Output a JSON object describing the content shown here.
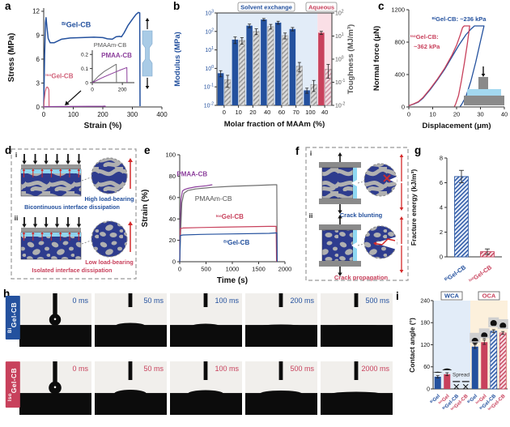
{
  "colors": {
    "blue": "#24519e",
    "red": "#c8415c",
    "pink_red": "#d06078",
    "purple": "#8c3f9c",
    "gray": "#6f6f6f",
    "navy": "#2e3c8e",
    "cyan": "#8fd8f2",
    "bg_blue": "#e2ecf8",
    "bg_pink": "#fadfe6",
    "bg_orange": "#fcf0dc"
  },
  "panel_labels": {
    "a": "a",
    "b": "b",
    "c": "c",
    "d": "d",
    "e": "e",
    "f": "f",
    "g": "g",
    "h": "h",
    "i": "i"
  },
  "chart_data": [
    {
      "panel": "a",
      "type": "line",
      "xlabel": "Strain (%)",
      "ylabel": "Stress (MPa)",
      "xlim": [
        0,
        400
      ],
      "ylim": [
        0,
        12.4
      ],
      "xticks": [
        0,
        100,
        200,
        300,
        400
      ],
      "yticks": [
        0,
        3,
        6,
        9,
        12
      ],
      "series": [
        {
          "name": "BiGel-CB",
          "sup": "Bi",
          "main": "Gel-CB",
          "color": "blue",
          "points": [
            [
              0,
              0
            ],
            [
              3,
              6.5
            ],
            [
              6,
              10.6
            ],
            [
              8,
              11.2
            ],
            [
              11,
              10
            ],
            [
              15,
              8.6
            ],
            [
              22,
              8.05
            ],
            [
              35,
              8.05
            ],
            [
              60,
              8.5
            ],
            [
              90,
              8.65
            ],
            [
              130,
              8.7
            ],
            [
              170,
              8.75
            ],
            [
              200,
              8.7
            ],
            [
              215,
              8.55
            ],
            [
              232,
              8.5
            ],
            [
              245,
              8.8
            ],
            [
              256,
              8.85
            ],
            [
              263,
              8.8
            ],
            [
              272,
              9.3
            ],
            [
              285,
              10.2
            ],
            [
              300,
              11.0
            ],
            [
              312,
              11.6
            ],
            [
              320,
              11.85
            ],
            [
              325,
              11.8
            ],
            [
              326,
              0.1
            ]
          ]
        },
        {
          "name": "IsoGel-CB",
          "sup": "Iso",
          "main": "Gel-CB",
          "color": "pink_red",
          "points": [
            [
              0,
              0
            ],
            [
              2,
              0.9
            ],
            [
              5,
              1.9
            ],
            [
              9,
              2.45
            ],
            [
              13,
              2.5
            ],
            [
              16,
              2.3
            ],
            [
              17.5,
              2.15
            ],
            [
              18,
              0.05
            ]
          ]
        },
        {
          "name": "PMAA-CB",
          "sup": "",
          "main": "PMAA-CB",
          "color": "purple",
          "points": [
            [
              0,
              0
            ],
            [
              5,
              0.04
            ],
            [
              100,
              0.06
            ],
            [
              200,
              0.09
            ],
            [
              208,
              0.1
            ],
            [
              210,
              0
            ]
          ]
        }
      ],
      "series_labels": [
        {
          "text_sup": "Bi",
          "text_main": "Gel-CB",
          "x": 110,
          "y": 10.0,
          "color": "blue",
          "anchor": "middle"
        },
        {
          "text_sup": "Iso",
          "text_main": "Gel-CB",
          "x": 6,
          "y": 3.6,
          "color": "pink_red",
          "anchor": "start"
        }
      ],
      "inset": {
        "xlim": [
          0,
          280
        ],
        "ylim": [
          0,
          0.23
        ],
        "xticks": [
          0,
          200
        ],
        "yticks": [
          0,
          0.1,
          0.2
        ],
        "series": [
          {
            "name": "PMAAm-CB",
            "color": "gray",
            "points": [
              [
                0,
                0
              ],
              [
                40,
                0.045
              ],
              [
                80,
                0.08
              ],
              [
                120,
                0.105
              ],
              [
                155,
                0.128
              ],
              [
                160,
                0.13
              ],
              [
                161,
                0
              ]
            ]
          },
          {
            "name": "PMAA-CB",
            "color": "purple",
            "points": [
              [
                0,
                0
              ],
              [
                60,
                0.032
              ],
              [
                120,
                0.06
              ],
              [
                180,
                0.087
              ],
              [
                225,
                0.105
              ],
              [
                230,
                0.107
              ],
              [
                231,
                0
              ]
            ]
          }
        ],
        "labels": [
          {
            "text": "PMAAm-CB",
            "color": "gray"
          },
          {
            "text": "PMAA-CB",
            "color": "purple"
          }
        ]
      }
    },
    {
      "panel": "b",
      "type": "bar",
      "xlabel": "Molar fraction of MAAm (%)",
      "ylabel_left": "Modulus (MPa)",
      "ylabel_right": "Toughness (MJ/m³)",
      "categories": [
        "0",
        "10",
        "20",
        "40",
        "60",
        "70",
        "100",
        "40"
      ],
      "regions": [
        {
          "label": "Solvent exchange",
          "color": "blue"
        },
        {
          "label": "Aqueous",
          "color": "red"
        }
      ],
      "left_axis": {
        "scale": "log",
        "min_exp": -2,
        "max_exp": 3
      },
      "right_axis": {
        "scale": "log",
        "min_exp": -2,
        "max_exp": 2
      },
      "series": [
        {
          "name": "Modulus (MPa)",
          "axis": "left",
          "values": [
            0.55,
            36,
            205,
            440,
            300,
            135,
            0.065,
            85
          ],
          "errors": [
            0.2,
            14,
            45,
            60,
            55,
            28,
            0.02,
            16
          ]
        },
        {
          "name": "Toughness (MJ/m³)",
          "axis": "right",
          "values": [
            0.13,
            6.5,
            16,
            26,
            10.5,
            0.5,
            0.08,
            0.37
          ],
          "errors": [
            0.07,
            2,
            4.5,
            6,
            3,
            0.22,
            0.04,
            0.22
          ]
        }
      ]
    },
    {
      "panel": "c",
      "type": "line",
      "xlabel": "Displacement (μm)",
      "ylabel": "Normal force (μN)",
      "xlim": [
        0,
        40
      ],
      "ylim": [
        0,
        1200
      ],
      "xticks": [
        0,
        10,
        20,
        30,
        40
      ],
      "yticks": [
        0,
        400,
        800,
        1200
      ],
      "series": [
        {
          "name": "BiGel-CB",
          "color": "blue",
          "points": [
            [
              0,
              15
            ],
            [
              2,
              35
            ],
            [
              4,
              60
            ],
            [
              6,
              110
            ],
            [
              9,
              215
            ],
            [
              12,
              335
            ],
            [
              15,
              465
            ],
            [
              18,
              615
            ],
            [
              21,
              765
            ],
            [
              24,
              895
            ],
            [
              26,
              960
            ],
            [
              27.5,
              1000
            ],
            [
              31.5,
              1000
            ],
            [
              30,
              810
            ],
            [
              28,
              550
            ],
            [
              26,
              320
            ],
            [
              24,
              135
            ],
            [
              22.2,
              35
            ],
            [
              21.5,
              5
            ]
          ]
        },
        {
          "name": "IsoGel-CB",
          "color": "red",
          "points": [
            [
              0,
              15
            ],
            [
              2,
              38
            ],
            [
              4,
              65
            ],
            [
              6,
              118
            ],
            [
              9,
              225
            ],
            [
              12,
              345
            ],
            [
              15,
              478
            ],
            [
              18,
              635
            ],
            [
              20,
              762
            ],
            [
              21.5,
              885
            ],
            [
              22.5,
              980
            ],
            [
              23.2,
              1000
            ],
            [
              25.5,
              1000
            ],
            [
              24.5,
              780
            ],
            [
              23.3,
              545
            ],
            [
              22,
              320
            ],
            [
              20.8,
              140
            ],
            [
              19.6,
              35
            ],
            [
              19.1,
              5
            ]
          ]
        }
      ],
      "annotations": [
        {
          "sup": "Bi",
          "main": "Gel-CB: ~236 kPa",
          "color": "blue"
        },
        {
          "sup": "Iso",
          "main": "Gel-CB:",
          "color": "red"
        },
        {
          "text": "~362 kPa",
          "color": "red"
        }
      ]
    },
    {
      "panel": "e",
      "type": "line",
      "xlabel": "Time (s)",
      "ylabel": "Strain (%)",
      "xlim": [
        0,
        2000
      ],
      "ylim": [
        0,
        100
      ],
      "xticks": [
        0,
        500,
        1000,
        1500,
        2000
      ],
      "yticks": [
        0,
        20,
        40,
        60,
        80,
        100
      ],
      "series": [
        {
          "name": "PMAA-CB",
          "color": "purple",
          "points": [
            [
              0,
              0
            ],
            [
              10,
              30
            ],
            [
              25,
              58
            ],
            [
              50,
              66
            ],
            [
              90,
              67.5
            ],
            [
              150,
              68.5
            ],
            [
              300,
              70
            ],
            [
              500,
              71
            ],
            [
              620,
              72
            ]
          ]
        },
        {
          "name": "PMAAm-CB",
          "color": "gray",
          "points": [
            [
              0,
              0
            ],
            [
              15,
              25
            ],
            [
              40,
              55
            ],
            [
              80,
              64
            ],
            [
              150,
              66.5
            ],
            [
              300,
              68
            ],
            [
              600,
              69.5
            ],
            [
              1000,
              70.5
            ],
            [
              1400,
              71.2
            ],
            [
              1800,
              72
            ],
            [
              1845,
              72
            ],
            [
              1852,
              0
            ]
          ]
        },
        {
          "name": "IsoGel-CB",
          "color": "red",
          "points": [
            [
              0,
              0
            ],
            [
              12,
              31
            ],
            [
              60,
              31.5
            ],
            [
              400,
              32
            ],
            [
              1000,
              32.5
            ],
            [
              1700,
              33
            ],
            [
              1832,
              33
            ],
            [
              1840,
              0
            ]
          ]
        },
        {
          "name": "BiGel-CB",
          "color": "blue",
          "points": [
            [
              0,
              0
            ],
            [
              12,
              24.5
            ],
            [
              60,
              25
            ],
            [
              400,
              25.5
            ],
            [
              1000,
              26
            ],
            [
              1700,
              26.5
            ],
            [
              1846,
              27
            ],
            [
              1853,
              0
            ]
          ]
        }
      ],
      "series_labels": [
        {
          "text_sup": "",
          "text_main": "PMAA-CB",
          "x": 235,
          "y": 80,
          "color": "purple",
          "bold": true
        },
        {
          "text_sup": "",
          "text_main": "PMAAm-CB",
          "x": 640,
          "y": 57,
          "color": "gray",
          "bold": false
        },
        {
          "text_sup": "Iso",
          "text_main": "Gel-CB",
          "x": 950,
          "y": 40,
          "color": "red",
          "bold": true
        },
        {
          "text_sup": "Bi",
          "text_main": "Gel-CB",
          "x": 1080,
          "y": 16,
          "color": "blue",
          "bold": true
        }
      ]
    },
    {
      "panel": "g",
      "type": "bar",
      "ylabel": "Fracture energy (kJ/m³)",
      "ylim": [
        0,
        8
      ],
      "yticks": [
        0,
        2,
        4,
        6,
        8
      ],
      "bars": [
        {
          "sup": "Bi",
          "main": "Gel-CB",
          "value": 6.5,
          "error": 0.5,
          "style": "hatch_blue",
          "color": "blue"
        },
        {
          "sup": "Iso",
          "main": "Gel-CB",
          "value": 0.42,
          "error": 0.22,
          "style": "hatch_red",
          "color": "red"
        }
      ]
    },
    {
      "panel": "i",
      "type": "bar",
      "ylabel": "Contact angle (°)",
      "ylim": [
        0,
        240
      ],
      "yticks": [
        0,
        60,
        120,
        180,
        240
      ],
      "spread_label": "Spread",
      "groups": [
        {
          "label": "WCA",
          "color": "blue"
        },
        {
          "label": "OCA",
          "color": "red"
        }
      ],
      "bars": [
        {
          "sup": "Bi",
          "main": "Gel",
          "value": 33,
          "error": 3,
          "style": "solid_blue",
          "group": 0,
          "icon": 0.22
        },
        {
          "sup": "Iso",
          "main": "Gel",
          "value": 40,
          "error": 4,
          "style": "solid_red",
          "group": 0,
          "icon": 0.35
        },
        {
          "sup": "Bi",
          "main": "Gel-CB",
          "value": null,
          "group": 0
        },
        {
          "sup": "Iso",
          "main": "Gel-CB",
          "value": null,
          "group": 0
        },
        {
          "sup": "Bi",
          "main": "Gel",
          "value": 115,
          "error": 5,
          "style": "solid_blue",
          "group": 1,
          "icon": 0.55
        },
        {
          "sup": "Iso",
          "main": "Gel",
          "value": 127,
          "error": 6,
          "style": "solid_red",
          "group": 1,
          "icon": 0.7
        },
        {
          "sup": "Bi",
          "main": "Gel-CB",
          "value": 157,
          "error": 4,
          "style": "hatch_blue",
          "group": 1,
          "icon": 0.9
        },
        {
          "sup": "Iso",
          "main": "Gel-CB",
          "value": 152,
          "error": 4,
          "style": "hatch_red",
          "group": 1,
          "icon": 0.8
        }
      ]
    }
  ],
  "schematic_d": {
    "items": [
      {
        "roman": "i",
        "morphology": "bicontinuous",
        "inset_label": "High load-bearing",
        "inset_color": "blue",
        "caption": "Bicontinuous interface dissipation",
        "caption_color": "blue"
      },
      {
        "roman": "ii",
        "morphology": "isolated",
        "inset_label": "Low load-bearing",
        "inset_color": "red",
        "caption": "Isolated interface dissipation",
        "caption_color": "red"
      }
    ]
  },
  "schematic_f": {
    "items": [
      {
        "roman": "i",
        "morphology": "bicontinuous",
        "crack": "blunt",
        "caption": "Crack blunting",
        "caption_color": "blue"
      },
      {
        "roman": "ii",
        "morphology": "isolated",
        "crack": "propagate",
        "caption": "Crack propagation",
        "caption_color": "red"
      }
    ]
  },
  "photos_h": {
    "rows": [
      {
        "sup": "Bi",
        "main": "Gel-CB",
        "color": "blue",
        "frames": [
          {
            "time": "0 ms",
            "drop": "ball"
          },
          {
            "time": "50 ms",
            "bump": [
              18,
              3.5
            ]
          },
          {
            "time": "100 ms",
            "bump": [
              16,
              2.5
            ]
          },
          {
            "time": "200 ms",
            "bump": [
              22,
              1.5
            ]
          },
          {
            "time": "500 ms",
            "bump": [
              26,
              1
            ]
          }
        ]
      },
      {
        "sup": "Iso",
        "main": "Gel-CB",
        "color": "red",
        "frames": [
          {
            "time": "0 ms",
            "drop": "ball"
          },
          {
            "time": "50 ms",
            "bump": [
              20,
              5
            ]
          },
          {
            "time": "100 ms",
            "bump": [
              22,
              4.5
            ]
          },
          {
            "time": "500 ms",
            "bump": [
              26,
              4
            ]
          },
          {
            "time": "2000 ms",
            "bump": [
              30,
              2.5
            ]
          }
        ]
      }
    ]
  }
}
